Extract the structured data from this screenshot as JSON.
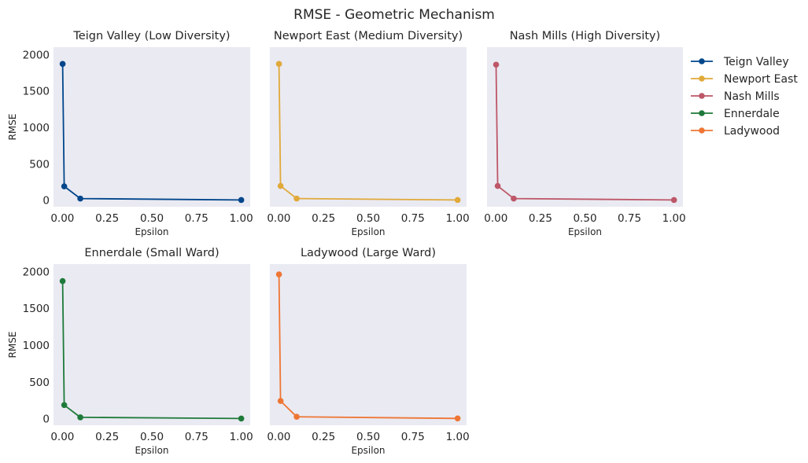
{
  "figure": {
    "title": "RMSE - Geometric Mechanism"
  },
  "legend": {
    "placement": "right",
    "entries": [
      {
        "name": "Teign Valley",
        "color": "#00468b"
      },
      {
        "name": "Newport East",
        "color": "#e0a93a"
      },
      {
        "name": "Nash Mills",
        "color": "#bd5768"
      },
      {
        "name": "Ennerdale",
        "color": "#1e7a3a"
      },
      {
        "name": "Ladywood",
        "color": "#ee7634"
      }
    ]
  },
  "chart_data": [
    {
      "type": "line",
      "title": "Teign Valley (Low Diversity)",
      "xlabel": "Epsilon",
      "ylabel": "RMSE",
      "color": "#00468b",
      "x": [
        0.001,
        0.01,
        0.1,
        1.0
      ],
      "y": [
        1870,
        190,
        22,
        3
      ],
      "xlim": [
        -0.05,
        1.05
      ],
      "ylim": [
        -90,
        2100
      ],
      "xticks": [
        0.0,
        0.25,
        0.5,
        0.75,
        1.0
      ],
      "xtick_labels": [
        "0.00",
        "0.25",
        "0.50",
        "0.75",
        "1.00"
      ],
      "yticks": [
        0,
        500,
        1000,
        1500,
        2000
      ],
      "ytick_labels": [
        "0",
        "500",
        "1000",
        "1500",
        "2000"
      ],
      "grid": false
    },
    {
      "type": "line",
      "title": "Newport East (Medium Diversity)",
      "xlabel": "Epsilon",
      "ylabel": "",
      "color": "#e0a93a",
      "x": [
        0.001,
        0.01,
        0.1,
        1.0
      ],
      "y": [
        1870,
        195,
        22,
        3
      ],
      "xlim": [
        -0.05,
        1.05
      ],
      "ylim": [
        -90,
        2100
      ],
      "xticks": [
        0.0,
        0.25,
        0.5,
        0.75,
        1.0
      ],
      "xtick_labels": [
        "0.00",
        "0.25",
        "0.50",
        "0.75",
        "1.00"
      ],
      "yticks": [
        0,
        500,
        1000,
        1500,
        2000
      ],
      "ytick_labels": [],
      "grid": false
    },
    {
      "type": "line",
      "title": "Nash Mills (High Diversity)",
      "xlabel": "Epsilon",
      "ylabel": "",
      "color": "#bd5768",
      "x": [
        0.001,
        0.01,
        0.1,
        1.0
      ],
      "y": [
        1860,
        195,
        22,
        3
      ],
      "xlim": [
        -0.05,
        1.05
      ],
      "ylim": [
        -90,
        2100
      ],
      "xticks": [
        0.0,
        0.25,
        0.5,
        0.75,
        1.0
      ],
      "xtick_labels": [
        "0.00",
        "0.25",
        "0.50",
        "0.75",
        "1.00"
      ],
      "yticks": [
        0,
        500,
        1000,
        1500,
        2000
      ],
      "ytick_labels": [],
      "grid": false
    },
    {
      "type": "line",
      "title": "Ennerdale (Small Ward)",
      "xlabel": "Epsilon",
      "ylabel": "RMSE",
      "color": "#1e7a3a",
      "x": [
        0.001,
        0.01,
        0.1,
        1.0
      ],
      "y": [
        1870,
        185,
        18,
        2
      ],
      "xlim": [
        -0.05,
        1.05
      ],
      "ylim": [
        -90,
        2100
      ],
      "xticks": [
        0.0,
        0.25,
        0.5,
        0.75,
        1.0
      ],
      "xtick_labels": [
        "0.00",
        "0.25",
        "0.50",
        "0.75",
        "1.00"
      ],
      "yticks": [
        0,
        500,
        1000,
        1500,
        2000
      ],
      "ytick_labels": [
        "0",
        "500",
        "1000",
        "1500",
        "2000"
      ],
      "grid": false
    },
    {
      "type": "line",
      "title": "Ladywood (Large Ward)",
      "xlabel": "Epsilon",
      "ylabel": "",
      "color": "#ee7634",
      "x": [
        0.001,
        0.01,
        0.1,
        1.0
      ],
      "y": [
        1960,
        240,
        25,
        3
      ],
      "xlim": [
        -0.05,
        1.05
      ],
      "ylim": [
        -90,
        2100
      ],
      "xticks": [
        0.0,
        0.25,
        0.5,
        0.75,
        1.0
      ],
      "xtick_labels": [
        "0.00",
        "0.25",
        "0.50",
        "0.75",
        "1.00"
      ],
      "yticks": [
        0,
        500,
        1000,
        1500,
        2000
      ],
      "ytick_labels": [],
      "grid": false
    }
  ]
}
